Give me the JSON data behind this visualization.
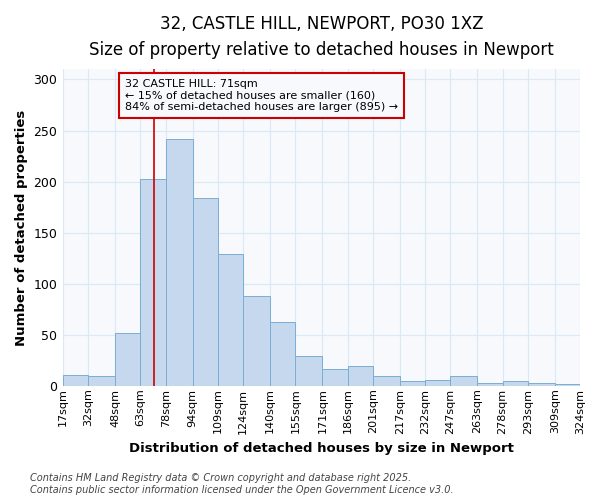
{
  "title": "32, CASTLE HILL, NEWPORT, PO30 1XZ",
  "subtitle": "Size of property relative to detached houses in Newport",
  "xlabel": "Distribution of detached houses by size in Newport",
  "ylabel": "Number of detached properties",
  "bar_color": "#c5d8ee",
  "bar_edge_color": "#7aaed4",
  "bins": [
    "17sqm",
    "32sqm",
    "48sqm",
    "63sqm",
    "78sqm",
    "94sqm",
    "109sqm",
    "124sqm",
    "140sqm",
    "155sqm",
    "171sqm",
    "186sqm",
    "201sqm",
    "217sqm",
    "232sqm",
    "247sqm",
    "263sqm",
    "278sqm",
    "293sqm",
    "309sqm",
    "324sqm"
  ],
  "bin_edges": [
    17,
    32,
    48,
    63,
    78,
    94,
    109,
    124,
    140,
    155,
    171,
    186,
    201,
    217,
    232,
    247,
    263,
    278,
    293,
    309,
    324
  ],
  "values": [
    11,
    10,
    52,
    203,
    242,
    184,
    129,
    88,
    62,
    29,
    16,
    19,
    10,
    5,
    6,
    10,
    3,
    5,
    3,
    2
  ],
  "red_line_x": 71,
  "annotation_title": "32 CASTLE HILL: 71sqm",
  "annotation_line1": "← 15% of detached houses are smaller (160)",
  "annotation_line2": "84% of semi-detached houses are larger (895) →",
  "footnote1": "Contains HM Land Registry data © Crown copyright and database right 2025.",
  "footnote2": "Contains public sector information licensed under the Open Government Licence v3.0.",
  "ylim": [
    0,
    310
  ],
  "background_color": "#ffffff",
  "plot_bg_color": "#f7f9fc",
  "grid_color": "#dce8f5",
  "title_fontsize": 12,
  "subtitle_fontsize": 10,
  "axis_label_fontsize": 9.5,
  "tick_fontsize": 8,
  "annotation_fontsize": 8,
  "footnote_fontsize": 7
}
